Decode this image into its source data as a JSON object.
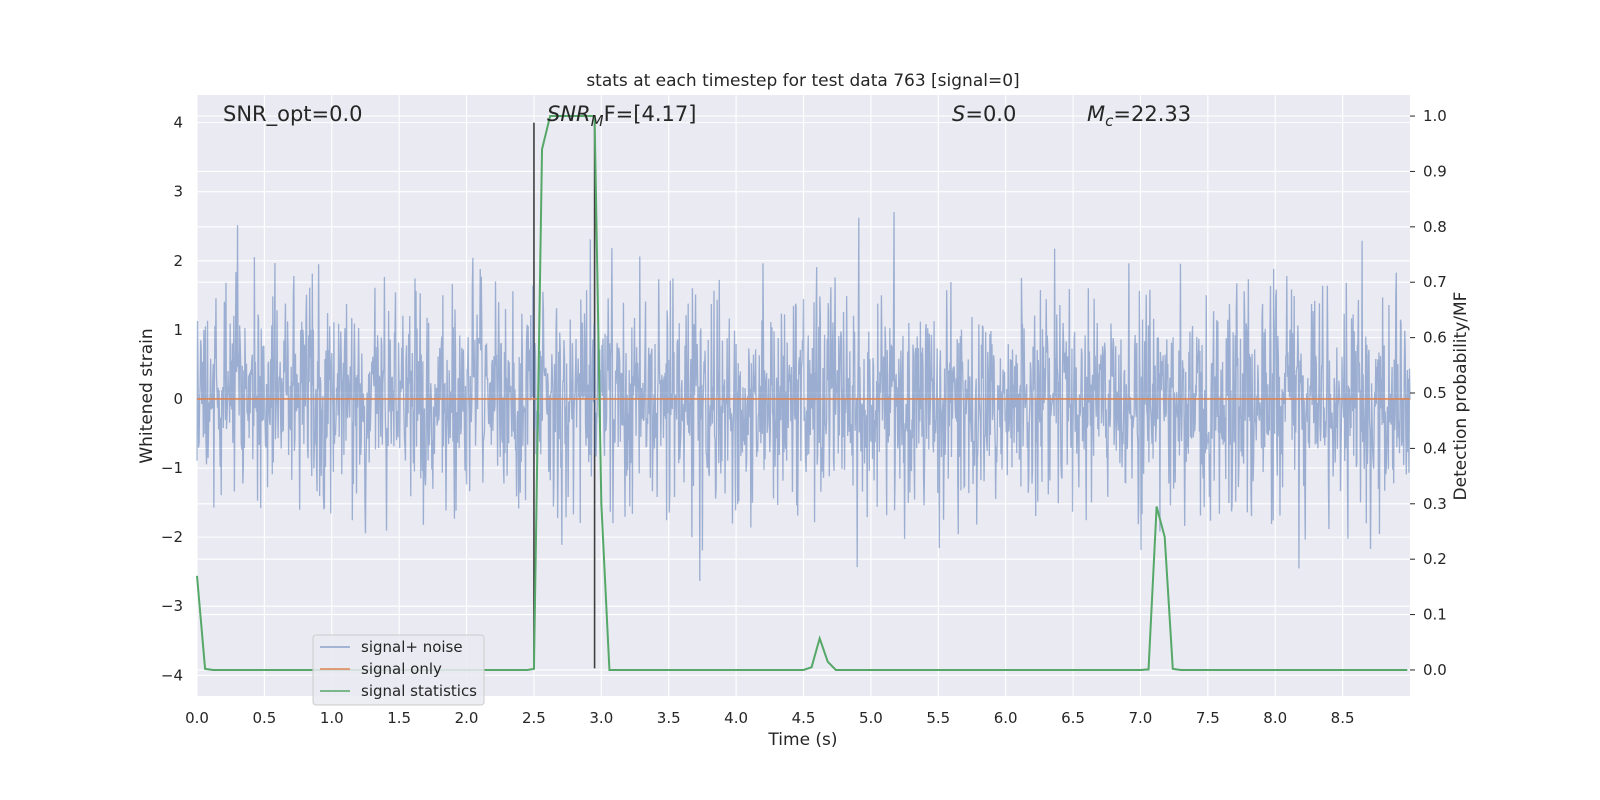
{
  "chart_data": {
    "type": "line",
    "title": "stats at each timestep for test data 763 [signal=0]",
    "xlabel": "Time (s)",
    "ylabel": "Whitened strain",
    "y2label": "Detection probability/MF",
    "xlim": [
      0.0,
      9.0
    ],
    "ylim": [
      -4.3,
      4.4
    ],
    "y2lim": [
      -0.047,
      1.038
    ],
    "xticks": [
      "0.0",
      "0.5",
      "1.0",
      "1.5",
      "2.0",
      "2.5",
      "3.0",
      "3.5",
      "4.0",
      "4.5",
      "5.0",
      "5.5",
      "6.0",
      "6.5",
      "7.0",
      "7.5",
      "8.0",
      "8.5"
    ],
    "yticks": [
      "4",
      "3",
      "2",
      "1",
      "0",
      "−1",
      "−2",
      "−3",
      "−4"
    ],
    "y2ticks": [
      "1.0",
      "0.9",
      "0.8",
      "0.7",
      "0.6",
      "0.5",
      "0.4",
      "0.3",
      "0.2",
      "0.1",
      "0.0"
    ],
    "grid": true,
    "legend_placement": "lower-left",
    "annotations": {
      "snr_opt": "SNR_opt=0.0",
      "snr_mf_base": "SNR",
      "snr_mf_sub": "M",
      "snr_mf_rest": "F=[4.17]",
      "s_var": "S",
      "s_rest": "=0.0",
      "mc_var": "M",
      "mc_sub": "c",
      "mc_rest": "=22.33"
    },
    "markers": {
      "vlines": [
        {
          "x": 2.5,
          "ymin": -3.9,
          "ymax": 4.0
        },
        {
          "x": 2.95,
          "ymin": -3.9,
          "ymax": 4.0
        }
      ]
    },
    "series": [
      {
        "name": "signal+ noise",
        "color": "#4c72b0",
        "axis": "left",
        "kind": "noise",
        "sample_rate": 256,
        "sigma": 0.8,
        "seed": 763,
        "display_range": [
          -3.3,
          3.8
        ]
      },
      {
        "name": "signal only",
        "color": "#dd8452",
        "axis": "left",
        "x": [
          0.0,
          9.0
        ],
        "y": [
          0.0,
          0.0
        ]
      },
      {
        "name": "signal statistics",
        "color": "#55a868",
        "axis": "right",
        "x": [
          0.0,
          0.06,
          0.12,
          0.25,
          0.5,
          1.0,
          1.5,
          2.0,
          2.45,
          2.5,
          2.56,
          2.62,
          2.7,
          2.8,
          2.9,
          2.95,
          3.0,
          3.06,
          3.1,
          3.5,
          4.0,
          4.5,
          4.56,
          4.62,
          4.68,
          4.74,
          4.8,
          5.0,
          5.5,
          6.0,
          6.5,
          7.0,
          7.06,
          7.12,
          7.18,
          7.24,
          7.3,
          7.5,
          8.0,
          8.5,
          8.98
        ],
        "y": [
          0.17,
          0.002,
          0.0,
          0.0,
          0.0,
          0.0,
          0.0,
          0.0,
          0.0,
          0.002,
          0.94,
          1.0,
          1.0,
          1.0,
          1.0,
          1.0,
          0.3,
          0.0,
          0.0,
          0.0,
          0.0,
          0.0,
          0.005,
          0.057,
          0.015,
          0.0,
          0.0,
          0.0,
          0.0,
          0.0,
          0.0,
          0.0,
          0.001,
          0.295,
          0.24,
          0.002,
          0.0,
          0.0,
          0.0,
          0.0,
          0.0
        ]
      }
    ],
    "colors": {
      "axes_bg": "#eaeaf2",
      "grid": "#ffffff",
      "text": "#262626",
      "marker_line": "#404040"
    }
  }
}
